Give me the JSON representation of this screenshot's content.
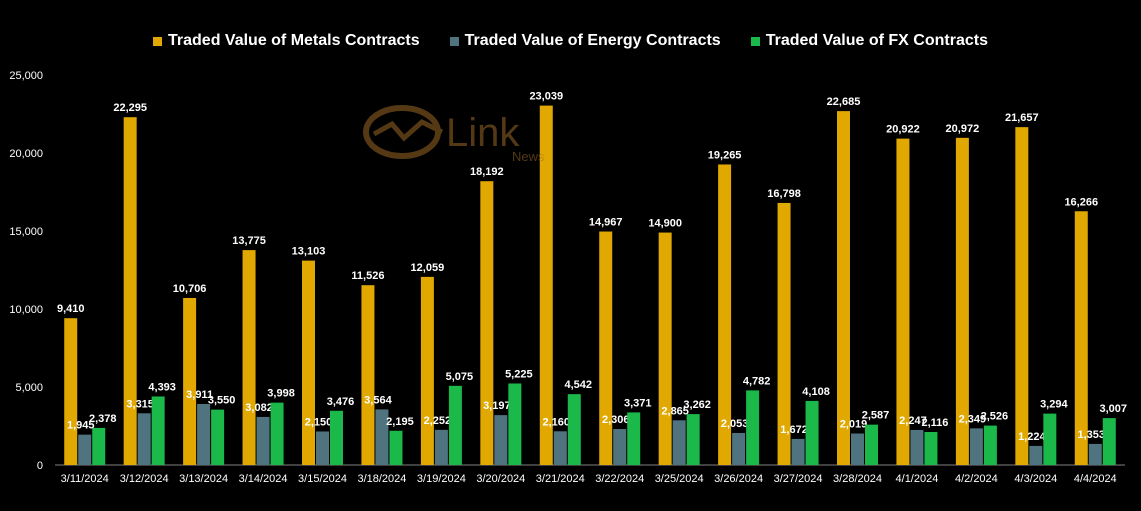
{
  "colors": {
    "metals": "#E0A800",
    "energy": "#4F7480",
    "fx": "#1BB84A",
    "axis_text": "#FFFFFF",
    "background": "#000000",
    "watermark": "#A9722A"
  },
  "watermark": {
    "brand": "Link",
    "sub": "News"
  },
  "chart_data": {
    "type": "bar",
    "title": "",
    "xlabel": "",
    "ylabel": "",
    "ylim": [
      0,
      25000
    ],
    "yticks": [
      0,
      5000,
      10000,
      15000,
      20000,
      25000
    ],
    "ytick_labels": [
      "0",
      "5,000",
      "10,000",
      "15,000",
      "20,000",
      "25,000"
    ],
    "grid": false,
    "legend_position": "top-center",
    "categories": [
      "3/11/2024",
      "3/12/2024",
      "3/13/2024",
      "3/14/2024",
      "3/15/2024",
      "3/18/2024",
      "3/19/2024",
      "3/20/2024",
      "3/21/2024",
      "3/22/2024",
      "3/25/2024",
      "3/26/2024",
      "3/27/2024",
      "3/28/2024",
      "4/1/2024",
      "4/2/2024",
      "4/3/2024",
      "4/4/2024"
    ],
    "series": [
      {
        "name": "Traded Value of Metals Contracts",
        "values": [
          9410,
          22295,
          10706,
          13775,
          13103,
          11526,
          12059,
          18192,
          23039,
          14967,
          14900,
          19265,
          16798,
          22685,
          20922,
          20972,
          21657,
          16266
        ],
        "labels": [
          "9,410",
          "22,295",
          "10,706",
          "13,775",
          "13,103",
          "11,526",
          "12,059",
          "18,192",
          "23,039",
          "14,967",
          "14,900",
          "19,265",
          "16,798",
          "22,685",
          "20,922",
          "20,972",
          "21,657",
          "16,266"
        ]
      },
      {
        "name": "Traded Value of Energy Contracts",
        "values": [
          1945,
          3315,
          3911,
          3082,
          2150,
          3564,
          2252,
          3197,
          2160,
          2306,
          2865,
          2053,
          1672,
          2019,
          2247,
          2349,
          1224,
          1353
        ],
        "labels": [
          "1,945",
          "3,315",
          "3,911",
          "3,082",
          "2,150",
          "3,564",
          "2,252",
          "3,197",
          "2,160",
          "2,306",
          "2,865",
          "2,053",
          "1,672",
          "2,019",
          "2,247",
          "2,349",
          "1,224",
          "1,353"
        ]
      },
      {
        "name": "Traded Value of FX Contracts",
        "values": [
          2378,
          4393,
          3550,
          3998,
          3476,
          2195,
          5075,
          5225,
          4542,
          3371,
          3262,
          4782,
          4108,
          2587,
          2116,
          2526,
          3294,
          3007
        ],
        "labels": [
          "2,378",
          "4,393",
          "3,550",
          "3,998",
          "3,476",
          "2,195",
          "5,075",
          "5,225",
          "4,542",
          "3,371",
          "3,262",
          "4,782",
          "4,108",
          "2,587",
          "2,116",
          "2,526",
          "3,294",
          "3,007"
        ]
      }
    ]
  }
}
